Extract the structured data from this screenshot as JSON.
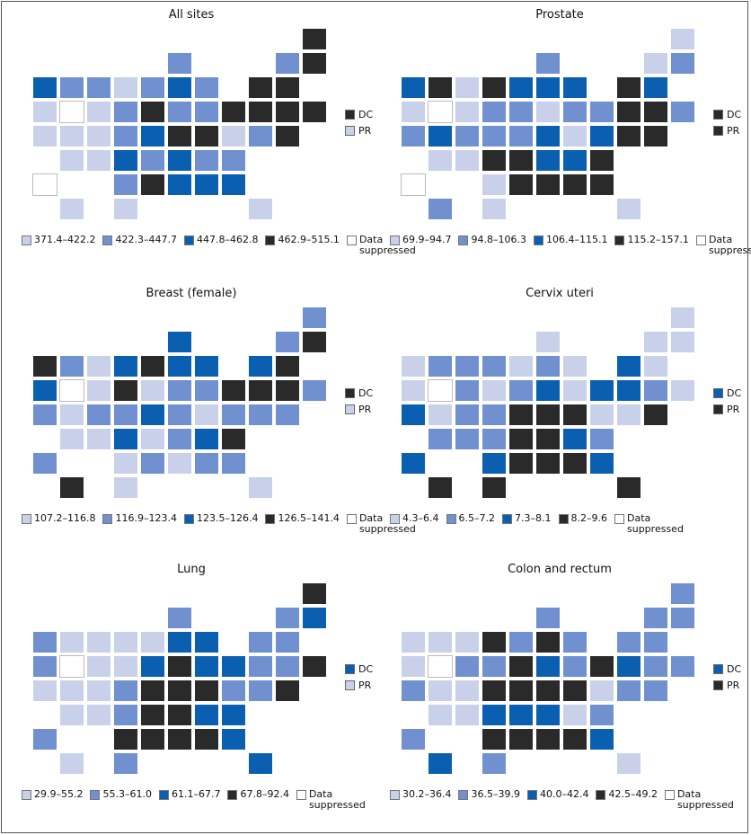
{
  "class_colors": [
    "#c9d1ea",
    "#7090cf",
    "#0b5fb0",
    "#2a2a2a",
    "#ffffff"
  ],
  "suppressed_label": [
    "Data",
    "suppressed"
  ],
  "dc_label": "DC",
  "pr_label": "PR",
  "maps": [
    {
      "title": "All sites",
      "legend": [
        "371.4–422.2",
        "422.3–447.7",
        "447.8–462.8",
        "462.9–515.1"
      ],
      "dc": 3,
      "pr": 0,
      "states": {
        "WA": 2,
        "OR": 0,
        "CA": 0,
        "NV": 4,
        "ID": 1,
        "MT": 1,
        "WY": 0,
        "UT": 0,
        "CO": 0,
        "AZ": 0,
        "NM": 0,
        "ND": 0,
        "SD": 1,
        "NE": 1,
        "KS": 2,
        "OK": 1,
        "TX": 0,
        "MN": 1,
        "IA": 3,
        "MO": 2,
        "AR": 1,
        "LA": 3,
        "WI": 1,
        "IL": 2,
        "MI": 1,
        "IN": 1,
        "OH": 1,
        "KY": 3,
        "TN": 2,
        "MS": 2,
        "AL": 2,
        "GA": 2,
        "FL": 0,
        "SC": 1,
        "NC": 1,
        "VA": 0,
        "WV": 3,
        "PA": 3,
        "NY": 3,
        "VT": 1,
        "NH": 3,
        "ME": 3,
        "MA": 3,
        "RI": 3,
        "CT": 3,
        "NJ": 3,
        "DE": 3,
        "MD": 1,
        "HI": 0,
        "AK": 4
      }
    },
    {
      "title": "Prostate",
      "legend": [
        "69.9–94.7",
        "94.8–106.3",
        "106.4–115.1",
        "115.2–157.1"
      ],
      "dc": 3,
      "pr": 3,
      "states": {
        "WA": 2,
        "OR": 0,
        "CA": 1,
        "NV": 4,
        "ID": 3,
        "MT": 0,
        "WY": 0,
        "UT": 2,
        "CO": 1,
        "AZ": 0,
        "NM": 0,
        "ND": 3,
        "SD": 1,
        "NE": 1,
        "KS": 3,
        "OK": 0,
        "TX": 0,
        "MN": 2,
        "IA": 1,
        "MO": 1,
        "AR": 3,
        "LA": 3,
        "WI": 1,
        "IL": 2,
        "MI": 2,
        "IN": 0,
        "OH": 1,
        "KY": 2,
        "TN": 2,
        "MS": 3,
        "AL": 3,
        "GA": 3,
        "FL": 0,
        "SC": 3,
        "NC": 2,
        "VA": 2,
        "WV": 0,
        "PA": 1,
        "NY": 3,
        "VT": 0,
        "NH": 1,
        "ME": 0,
        "MA": 2,
        "RI": 1,
        "CT": 3,
        "NJ": 3,
        "DE": 3,
        "MD": 3,
        "HI": 1,
        "AK": 4
      }
    },
    {
      "title": "Breast (female)",
      "legend": [
        "107.2–116.8",
        "116.9–123.4",
        "123.5–126.4",
        "126.5–141.4"
      ],
      "dc": 3,
      "pr": 0,
      "states": {
        "WA": 3,
        "OR": 2,
        "CA": 1,
        "NV": 4,
        "ID": 1,
        "MT": 0,
        "WY": 0,
        "UT": 0,
        "CO": 1,
        "AZ": 0,
        "NM": 0,
        "ND": 2,
        "SD": 3,
        "NE": 1,
        "KS": 2,
        "OK": 0,
        "TX": 0,
        "MN": 3,
        "IA": 0,
        "MO": 2,
        "AR": 0,
        "LA": 1,
        "WI": 2,
        "IL": 2,
        "MI": 2,
        "IN": 1,
        "OH": 1,
        "KY": 1,
        "TN": 1,
        "MS": 0,
        "AL": 1,
        "GA": 1,
        "FL": 0,
        "SC": 3,
        "NC": 2,
        "VA": 1,
        "WV": 0,
        "PA": 3,
        "NY": 2,
        "VT": 1,
        "NH": 3,
        "ME": 1,
        "MA": 3,
        "RI": 1,
        "CT": 3,
        "NJ": 3,
        "DE": 1,
        "MD": 1,
        "HI": 3,
        "AK": 1
      }
    },
    {
      "title": "Cervix uteri",
      "legend": [
        "4.3–6.4",
        "6.5–7.2",
        "7.3–8.1",
        "8.2–9.6"
      ],
      "dc": 2,
      "pr": 3,
      "states": {
        "WA": 0,
        "OR": 0,
        "CA": 2,
        "NV": 4,
        "ID": 1,
        "MT": 1,
        "WY": 1,
        "UT": 0,
        "CO": 1,
        "AZ": 1,
        "NM": 1,
        "ND": 1,
        "SD": 0,
        "NE": 1,
        "KS": 1,
        "OK": 2,
        "TX": 3,
        "MN": 0,
        "IA": 1,
        "MO": 3,
        "AR": 3,
        "LA": 3,
        "WI": 0,
        "IL": 1,
        "MI": 0,
        "IN": 2,
        "OH": 0,
        "KY": 3,
        "TN": 3,
        "MS": 3,
        "AL": 3,
        "GA": 2,
        "FL": 3,
        "SC": 1,
        "NC": 2,
        "VA": 0,
        "WV": 3,
        "PA": 2,
        "NY": 2,
        "VT": 0,
        "NH": 0,
        "ME": 0,
        "MA": 0,
        "RI": 0,
        "CT": 1,
        "NJ": 2,
        "DE": 3,
        "MD": 0,
        "HI": 3,
        "AK": 2
      }
    },
    {
      "title": "Lung",
      "legend": [
        "29.9–55.2",
        "55.3–61.0",
        "61.1–67.7",
        "67.8–92.4"
      ],
      "dc": 2,
      "pr": 0,
      "states": {
        "WA": 1,
        "OR": 1,
        "CA": 0,
        "NV": 4,
        "ID": 0,
        "MT": 0,
        "WY": 0,
        "UT": 0,
        "CO": 0,
        "AZ": 0,
        "NM": 0,
        "ND": 0,
        "SD": 0,
        "NE": 1,
        "KS": 1,
        "OK": 3,
        "TX": 1,
        "MN": 0,
        "IA": 2,
        "MO": 3,
        "AR": 3,
        "LA": 3,
        "WI": 1,
        "IL": 2,
        "MI": 2,
        "IN": 3,
        "OH": 2,
        "KY": 3,
        "TN": 3,
        "MS": 3,
        "AL": 3,
        "GA": 2,
        "FL": 2,
        "SC": 2,
        "NC": 2,
        "VA": 1,
        "WV": 3,
        "PA": 2,
        "NY": 1,
        "VT": 1,
        "NH": 2,
        "ME": 3,
        "MA": 1,
        "RI": 3,
        "CT": 1,
        "NJ": 1,
        "DE": 3,
        "MD": 1,
        "HI": 0,
        "AK": 1
      }
    },
    {
      "title": "Colon and rectum",
      "legend": [
        "30.2–36.4",
        "36.5–39.9",
        "40.0–42.4",
        "42.5–49.2"
      ],
      "dc": 2,
      "pr": 3,
      "states": {
        "WA": 0,
        "OR": 0,
        "CA": 1,
        "NV": 4,
        "ID": 0,
        "MT": 0,
        "WY": 1,
        "UT": 0,
        "CO": 0,
        "AZ": 0,
        "NM": 0,
        "ND": 3,
        "SD": 1,
        "NE": 3,
        "KS": 2,
        "OK": 3,
        "TX": 1,
        "MN": 1,
        "IA": 3,
        "MO": 3,
        "AR": 2,
        "LA": 3,
        "WI": 1,
        "IL": 3,
        "MI": 1,
        "IN": 2,
        "OH": 1,
        "KY": 3,
        "TN": 2,
        "MS": 3,
        "AL": 3,
        "GA": 2,
        "FL": 0,
        "SC": 1,
        "NC": 0,
        "VA": 0,
        "WV": 3,
        "PA": 3,
        "NY": 1,
        "VT": 1,
        "NH": 1,
        "ME": 1,
        "MA": 1,
        "RI": 1,
        "CT": 1,
        "NJ": 2,
        "DE": 1,
        "MD": 1,
        "HI": 2,
        "AK": 1
      }
    }
  ]
}
